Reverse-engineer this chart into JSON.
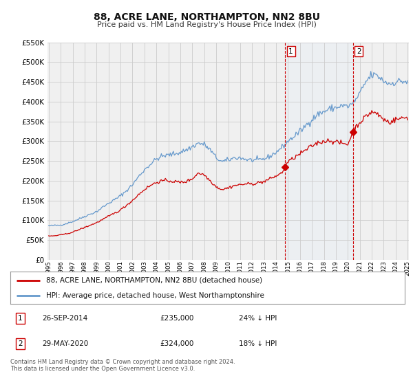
{
  "title": "88, ACRE LANE, NORTHAMPTON, NN2 8BU",
  "subtitle": "Price paid vs. HM Land Registry's House Price Index (HPI)",
  "legend_line1": "88, ACRE LANE, NORTHAMPTON, NN2 8BU (detached house)",
  "legend_line2": "HPI: Average price, detached house, West Northamptonshire",
  "footnote": "Contains HM Land Registry data © Crown copyright and database right 2024.\nThis data is licensed under the Open Government Licence v3.0.",
  "annotation1_date": "26-SEP-2014",
  "annotation1_price": "£235,000",
  "annotation1_hpi": "24% ↓ HPI",
  "annotation2_date": "29-MAY-2020",
  "annotation2_price": "£324,000",
  "annotation2_hpi": "18% ↓ HPI",
  "red_color": "#cc0000",
  "blue_color": "#6699cc",
  "blue_shade_color": "#ddeeff",
  "background_color": "#ffffff",
  "grid_color": "#cccccc",
  "plot_bg_color": "#f0f0f0",
  "ylim": [
    0,
    550000
  ],
  "yticks": [
    0,
    50000,
    100000,
    150000,
    200000,
    250000,
    300000,
    350000,
    400000,
    450000,
    500000,
    550000
  ],
  "vline1_x": 2014.75,
  "vline2_x": 2020.42,
  "marker1_y": 235000,
  "marker2_y": 324000,
  "xmin": 1995,
  "xmax": 2025
}
